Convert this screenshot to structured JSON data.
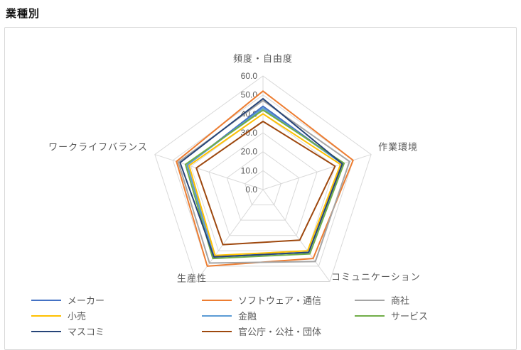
{
  "title": "業種別",
  "colors": {
    "grid": "#d9d9d9",
    "chart_border": "#d9d9d9",
    "label_text": "#595959",
    "title_text": "#111111"
  },
  "chart_data": {
    "type": "radar",
    "title": "業種別",
    "categories": [
      "頻度・自由度",
      "作業環境",
      "コミュニケーション",
      "生産性",
      "ワークライフバランス"
    ],
    "axis": {
      "min": 0,
      "max": 60,
      "step": 10,
      "tick_labels": [
        "0.0",
        "10.0",
        "20.0",
        "30.0",
        "40.0",
        "50.0",
        "60.0"
      ]
    },
    "grid": true,
    "legend_position": "bottom",
    "series": [
      {
        "name": "メーカー",
        "color": "#4472C4",
        "values": [
          44,
          44,
          41,
          44,
          42
        ]
      },
      {
        "name": "ソフトウェア・通信",
        "color": "#ED7D31",
        "values": [
          52,
          50,
          45,
          50,
          48
        ]
      },
      {
        "name": "商社",
        "color": "#A5A5A5",
        "values": [
          47,
          48,
          47,
          48,
          47
        ]
      },
      {
        "name": "小売",
        "color": "#FFC000",
        "values": [
          40,
          43,
          40,
          43,
          41
        ]
      },
      {
        "name": "金融",
        "color": "#5B9BD5",
        "values": [
          43,
          44,
          41,
          44,
          42
        ]
      },
      {
        "name": "サービス",
        "color": "#70AD47",
        "values": [
          42,
          45,
          42,
          45,
          43
        ]
      },
      {
        "name": "マスコミ",
        "color": "#264478",
        "values": [
          48,
          44,
          41,
          44,
          46
        ]
      },
      {
        "name": "官公庁・公社・団体",
        "color": "#9E480E",
        "values": [
          36,
          40,
          33,
          36,
          37
        ]
      }
    ]
  }
}
